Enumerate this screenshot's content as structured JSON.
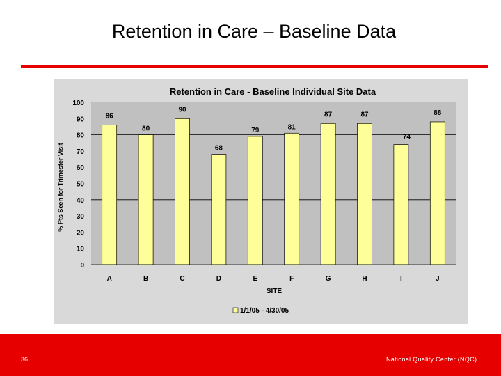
{
  "slide": {
    "title": "Retention in Care – Baseline Data",
    "page_number": "36",
    "footer": "National Quality Center (NQC)",
    "accent_color": "#e60000"
  },
  "chart_data": {
    "type": "bar",
    "title": "Retention in Care - Baseline Individual Site Data",
    "xlabel": "SITE",
    "ylabel": "% Pts Seen for Trimester Visit",
    "categories": [
      "A",
      "B",
      "C",
      "D",
      "E",
      "F",
      "G",
      "H",
      "I",
      "J"
    ],
    "series": [
      {
        "name": "1/1/05 - 4/30/05",
        "values": [
          86,
          80,
          90,
          68,
          79,
          81,
          87,
          87,
          74,
          88
        ],
        "color": "#ffff99"
      }
    ],
    "ylim": [
      0,
      100
    ],
    "yticks": [
      0,
      10,
      20,
      30,
      40,
      50,
      60,
      70,
      80,
      90,
      100
    ],
    "data_labels": true,
    "grid": "horizontal major at 40, 80",
    "legend": "bottom"
  }
}
